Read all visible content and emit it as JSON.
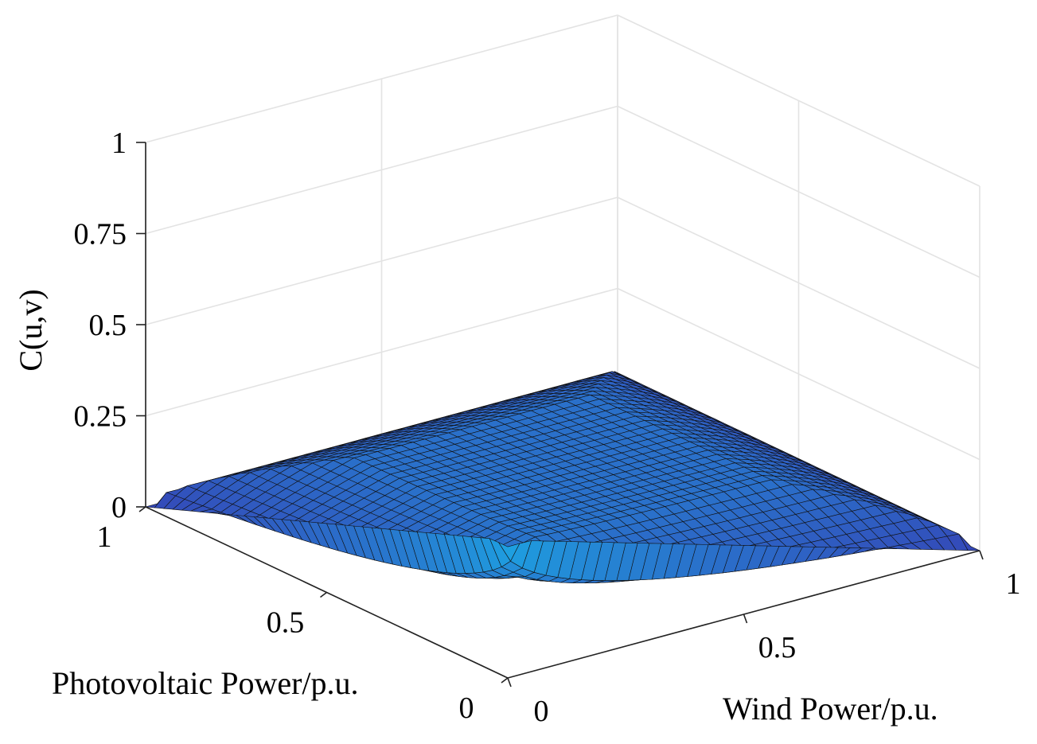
{
  "chart_data": {
    "type": "surface3d",
    "title": "",
    "xlabel": "Wind Power/p.u.",
    "ylabel": "Photovoltaic Power/p.u.",
    "zlabel": "C(u,v)",
    "xlim": [
      0,
      1
    ],
    "ylim": [
      0,
      1
    ],
    "zlim": [
      0,
      1
    ],
    "x_ticks": [
      "0",
      "0.5",
      "1"
    ],
    "y_ticks": [
      "0",
      "0.5",
      "1"
    ],
    "z_ticks": [
      "0",
      "0.25",
      "0.5",
      "0.75",
      "1"
    ],
    "grid": true,
    "colormap": "parula",
    "surface_color_low": "#3d26a8",
    "surface_color_high": "#1e9fe0",
    "grid_resolution": 40,
    "peak_value": 0.36,
    "corner_values": {
      "u0_v0": 0.36,
      "u1_v0": 0.0,
      "u0_v1": 0.0,
      "u1_v1": 0.05
    }
  }
}
